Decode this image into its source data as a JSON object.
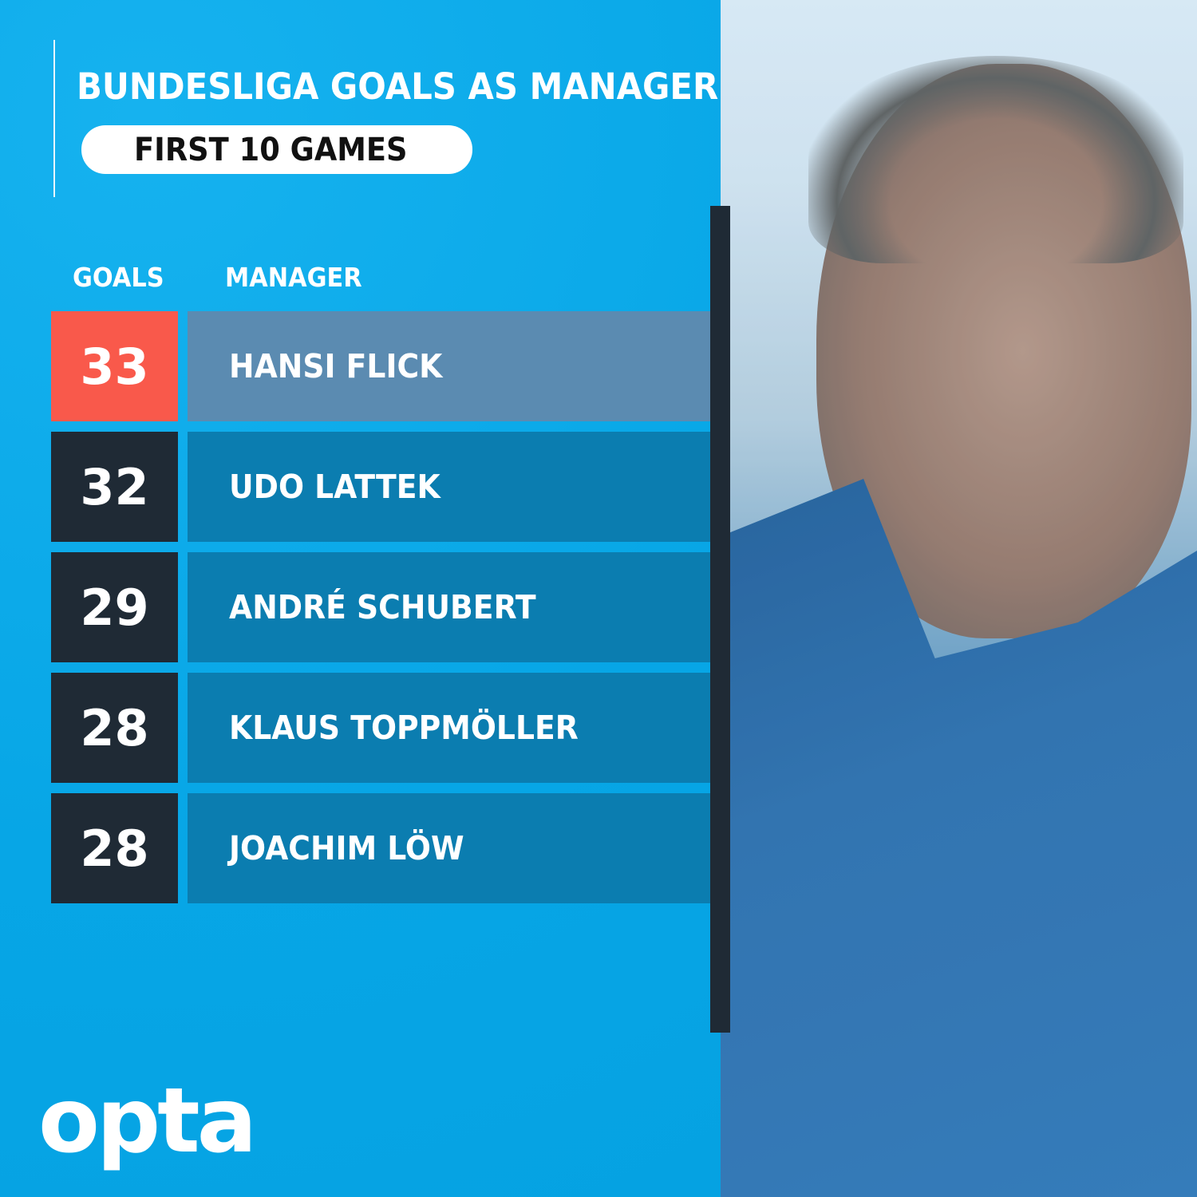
{
  "title": "BUNDESLIGA GOALS AS MANAGER",
  "subtitle": "FIRST 10 GAMES",
  "headers": {
    "goals": "GOALS",
    "manager": "MANAGER"
  },
  "rows": [
    {
      "goals": "33",
      "manager": "HANSI FLICK",
      "highlight": true
    },
    {
      "goals": "32",
      "manager": "UDO LATTEK",
      "highlight": false
    },
    {
      "goals": "29",
      "manager": "ANDRÉ SCHUBERT",
      "highlight": false
    },
    {
      "goals": "28",
      "manager": "KLAUS TOPPMÖLLER",
      "highlight": false
    },
    {
      "goals": "28",
      "manager": "JOACHIM LÖW",
      "highlight": false
    }
  ],
  "logo": "opta",
  "colors": {
    "background": "#0aa9e8",
    "highlight_goals": "#f9594b",
    "highlight_name": "#5b8bb1",
    "goals_box": "#1f2a35",
    "name_box": "#0b7db0"
  },
  "chart_data": {
    "type": "table",
    "title": "BUNDESLIGA GOALS AS MANAGER",
    "subtitle": "FIRST 10 GAMES",
    "columns": [
      "GOALS",
      "MANAGER"
    ],
    "categories": [
      "HANSI FLICK",
      "UDO LATTEK",
      "ANDRÉ SCHUBERT",
      "KLAUS TOPPMÖLLER",
      "JOACHIM LÖW"
    ],
    "values": [
      33,
      32,
      29,
      28,
      28
    ]
  }
}
